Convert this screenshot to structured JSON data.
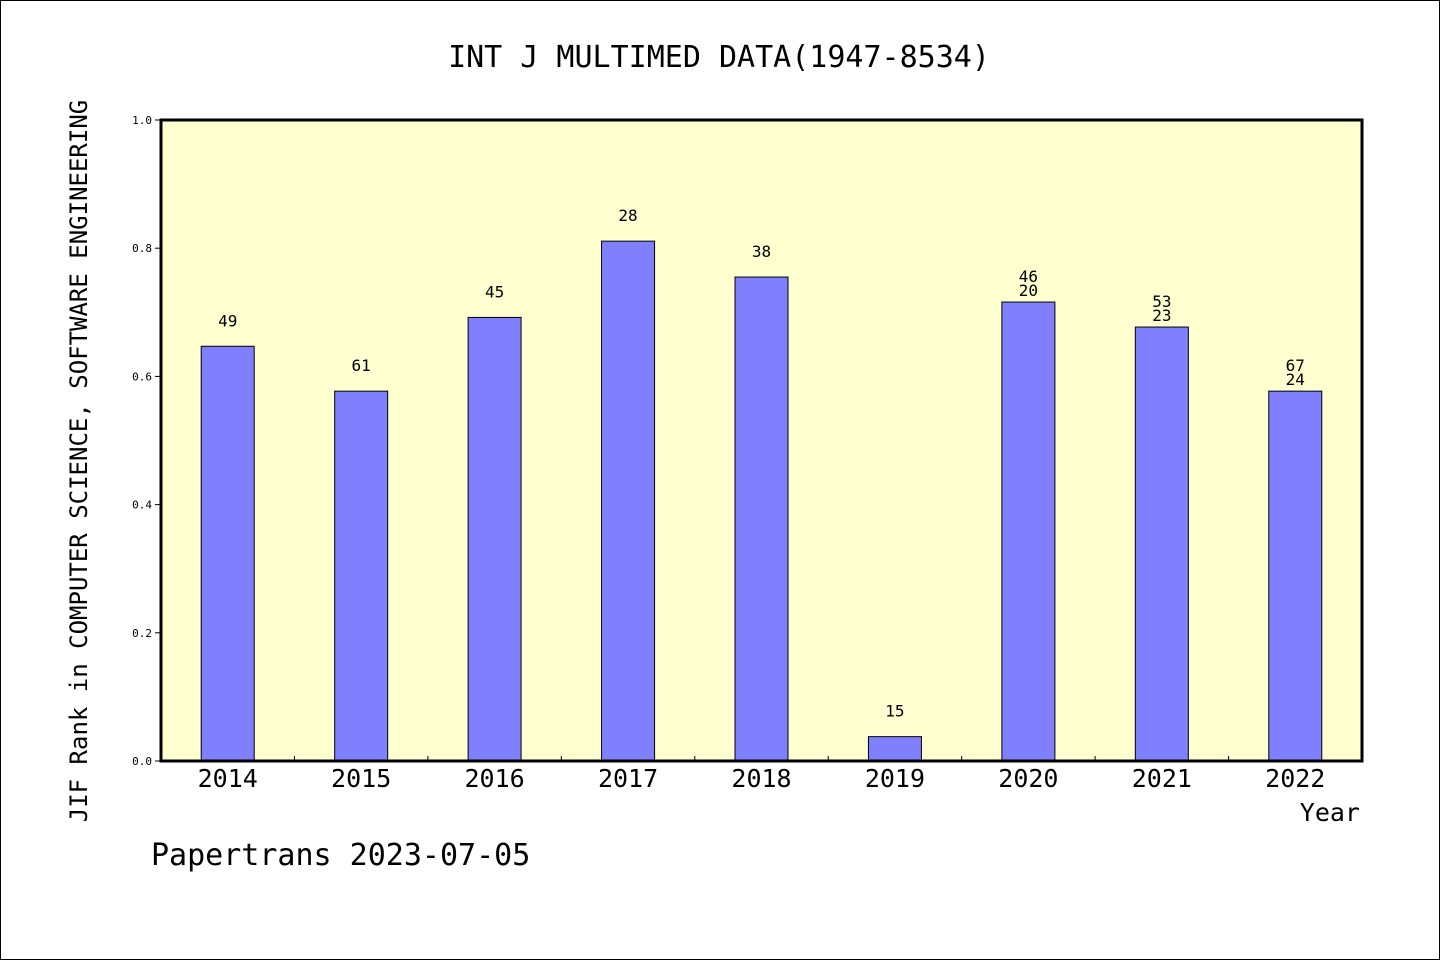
{
  "chart_data": {
    "type": "bar",
    "title": "INT J MULTIMED DATA(1947-8534)",
    "xlabel": "Year",
    "ylabel": "JIF Rank in COMPUTER SCIENCE, SOFTWARE ENGINEERING",
    "ylim": [
      0,
      1.0
    ],
    "yticks": [
      "0.0",
      "0.2",
      "0.4",
      "0.6",
      "0.8",
      "1.0"
    ],
    "categories": [
      "2014",
      "2015",
      "2016",
      "2017",
      "2018",
      "2019",
      "2020",
      "2021",
      "2022"
    ],
    "values": [
      0.647,
      0.577,
      0.692,
      0.811,
      0.755,
      0.038,
      0.716,
      0.677,
      0.577
    ],
    "bar_labels": [
      [
        "49"
      ],
      [
        "61"
      ],
      [
        "45"
      ],
      [
        "28"
      ],
      [
        "38"
      ],
      [
        "15"
      ],
      [
        "46",
        "20"
      ],
      [
        "53",
        "23"
      ],
      [
        "67",
        "24"
      ]
    ],
    "grid": false,
    "colors": {
      "bar": "#8080ff",
      "plot_bg": "#ffffd0",
      "bar_edge": "#000000"
    }
  },
  "footer": "Papertrans 2023-07-05"
}
